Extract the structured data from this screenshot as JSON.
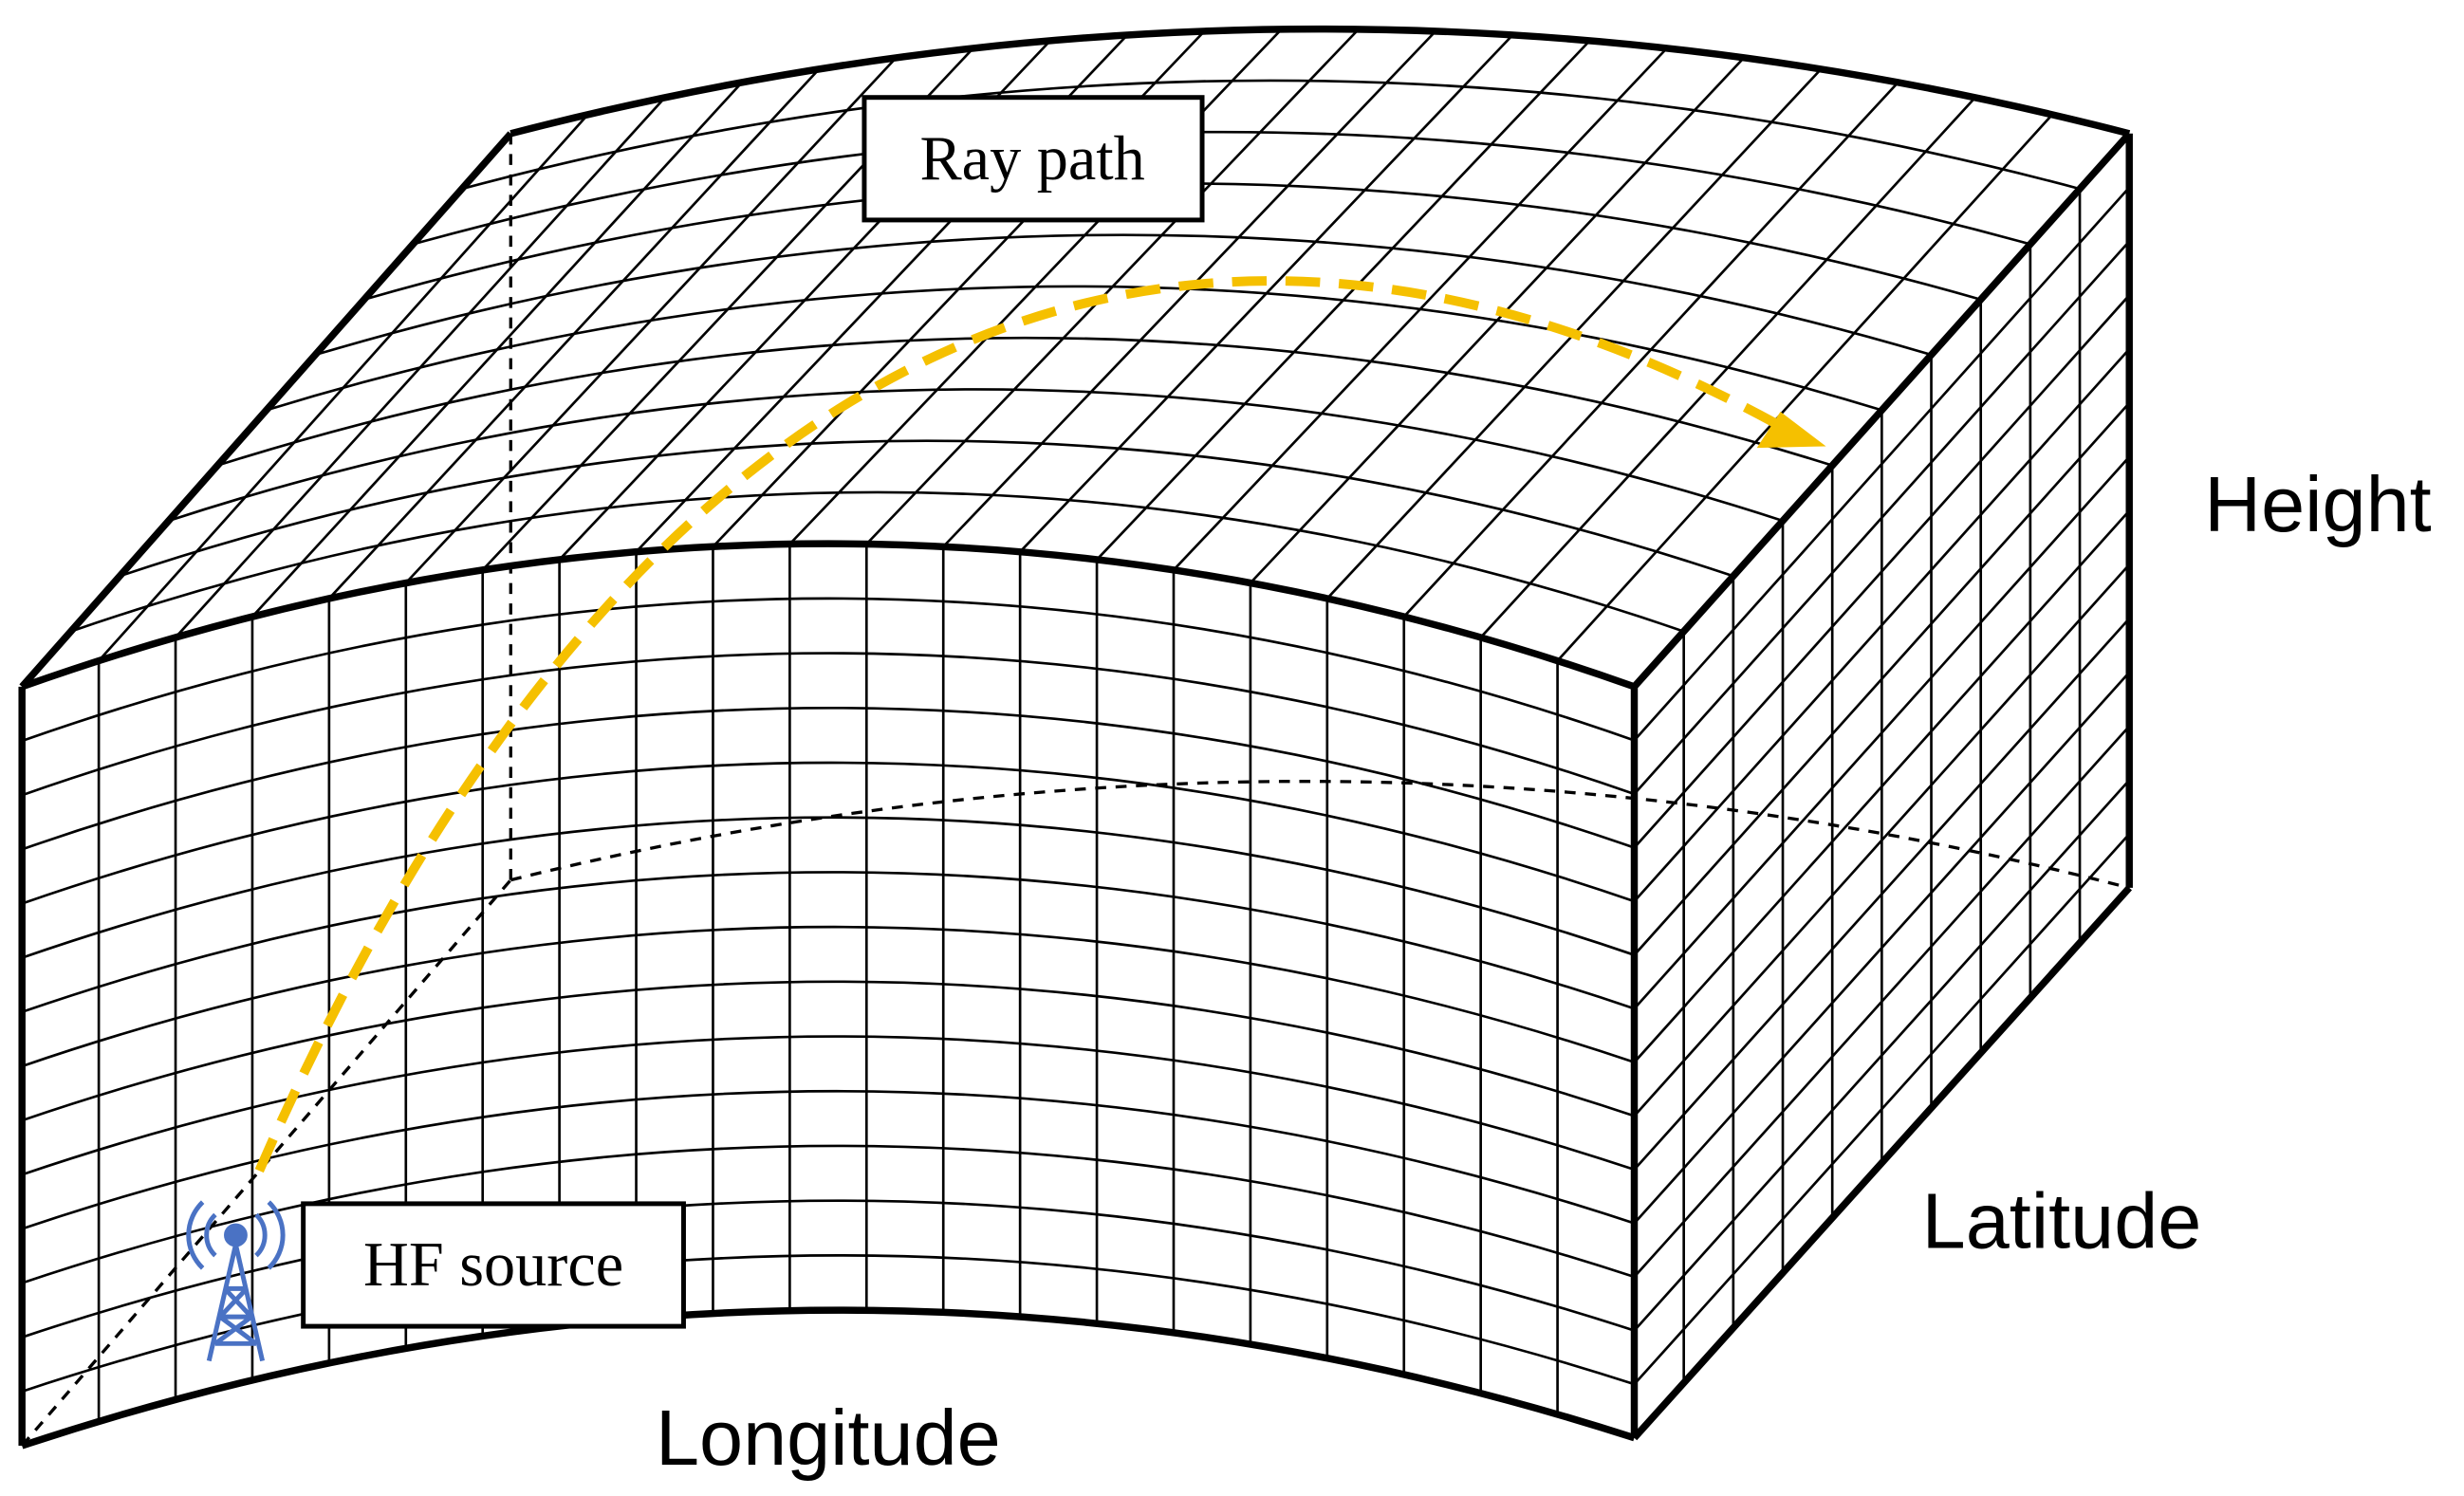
{
  "labels": {
    "ray_path": "Ray path",
    "hf_source": "HF source",
    "height": "Height",
    "latitude": "Latitude",
    "longitude": "Longitude"
  }
}
